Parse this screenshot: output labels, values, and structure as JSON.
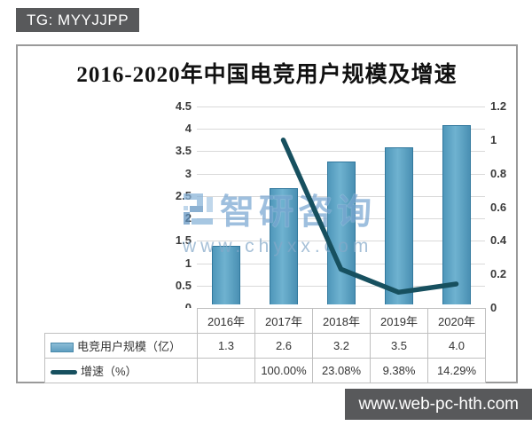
{
  "badges": {
    "top_left": "TG: MYYJJPP",
    "bottom_right": "www.web-pc-hth.com"
  },
  "watermark": {
    "brand": "智研咨询",
    "url": "www.chyxx.com"
  },
  "chart_data": {
    "type": "bar+line combo",
    "title": "2016-2020年中国电竞用户规模及增速",
    "categories": [
      "2016年",
      "2017年",
      "2018年",
      "2019年",
      "2020年"
    ],
    "series": [
      {
        "name": "电竞用户规模（亿）",
        "type": "bar",
        "axis": "left",
        "values": [
          1.3,
          2.6,
          3.2,
          3.5,
          4.0
        ],
        "color": "#5b9fc0"
      },
      {
        "name": "增速（%）",
        "type": "line",
        "axis": "right",
        "values": [
          null,
          1.0,
          0.2308,
          0.0938,
          0.1429
        ],
        "labels": [
          "",
          "100.00%",
          "23.08%",
          "9.38%",
          "14.29%"
        ],
        "color": "#17505f"
      }
    ],
    "left_axis": {
      "min": 0,
      "max": 4.5,
      "step": 0.5,
      "ticks": [
        "4.5",
        "4",
        "3.5",
        "3",
        "2.5",
        "2",
        "1.5",
        "1",
        "0.5",
        "0"
      ]
    },
    "right_axis": {
      "min": 0,
      "max": 1.2,
      "step": 0.2,
      "ticks": [
        "1.2",
        "1",
        "0.8",
        "0.6",
        "0.4",
        "0.2",
        "0"
      ]
    },
    "grid": "horizontal",
    "legend_position": "table-left"
  },
  "table": {
    "header": [
      "2016年",
      "2017年",
      "2018年",
      "2019年",
      "2020年"
    ],
    "rows": [
      {
        "label": "电竞用户规模（亿）",
        "cells": [
          "1.3",
          "2.6",
          "3.2",
          "3.5",
          "4.0"
        ]
      },
      {
        "label": "增速（%）",
        "cells": [
          "",
          "100.00%",
          "23.08%",
          "9.38%",
          "14.29%"
        ]
      }
    ]
  },
  "colors": {
    "bar_fill": "#5b9fc0",
    "bar_border": "#31789d",
    "line": "#17505f",
    "badge_bg": "#58595b",
    "watermark_blue": "#7aa7d2",
    "gridline": "#d9d9d9",
    "frame_border": "#9a9a9a"
  }
}
